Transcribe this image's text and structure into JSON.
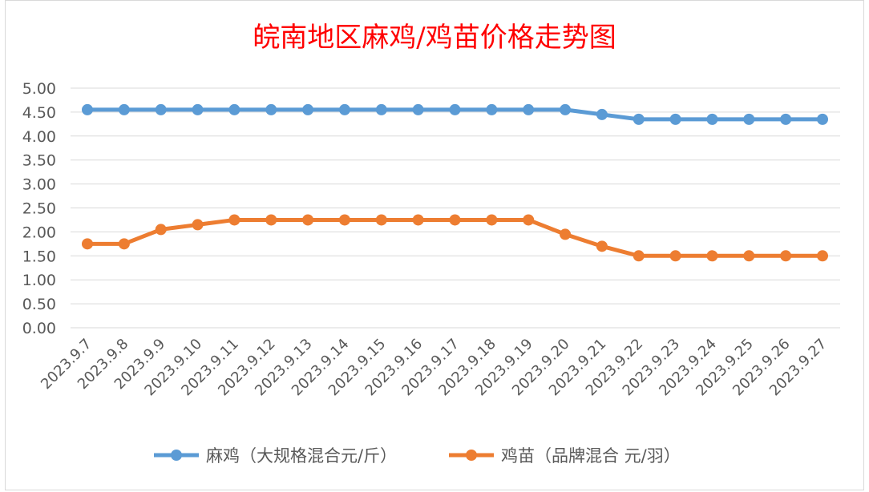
{
  "chart_data": {
    "type": "line",
    "title": "皖南地区麻鸡/鸡苗价格走势图",
    "categories": [
      "2023.9.7",
      "2023.9.8",
      "2023.9.9",
      "2023.9.10",
      "2023.9.11",
      "2023.9.12",
      "2023.9.13",
      "2023.9.14",
      "2023.9.15",
      "2023.9.16",
      "2023.9.17",
      "2023.9.18",
      "2023.9.19",
      "2023.9.20",
      "2023.9.21",
      "2023.9.22",
      "2023.9.23",
      "2023.9.24",
      "2023.9.25",
      "2023.9.26",
      "2023.9.27"
    ],
    "series": [
      {
        "name": "麻鸡（大规格混合元/斤）",
        "color": "#5b9bd5",
        "values": [
          4.55,
          4.55,
          4.55,
          4.55,
          4.55,
          4.55,
          4.55,
          4.55,
          4.55,
          4.55,
          4.55,
          4.55,
          4.55,
          4.55,
          4.45,
          4.35,
          4.35,
          4.35,
          4.35,
          4.35,
          4.35
        ]
      },
      {
        "name": "鸡苗（品牌混合 元/羽）",
        "color": "#ed7d31",
        "values": [
          1.75,
          1.75,
          2.05,
          2.15,
          2.25,
          2.25,
          2.25,
          2.25,
          2.25,
          2.25,
          2.25,
          2.25,
          2.25,
          1.95,
          1.7,
          1.5,
          1.5,
          1.5,
          1.5,
          1.5,
          1.5
        ]
      }
    ],
    "yticks": [
      "0.00",
      "0.50",
      "1.00",
      "1.50",
      "2.00",
      "2.50",
      "3.00",
      "3.50",
      "4.00",
      "4.50",
      "5.00"
    ],
    "ylim": [
      0,
      5
    ],
    "grid": true,
    "legend_position": "bottom"
  }
}
